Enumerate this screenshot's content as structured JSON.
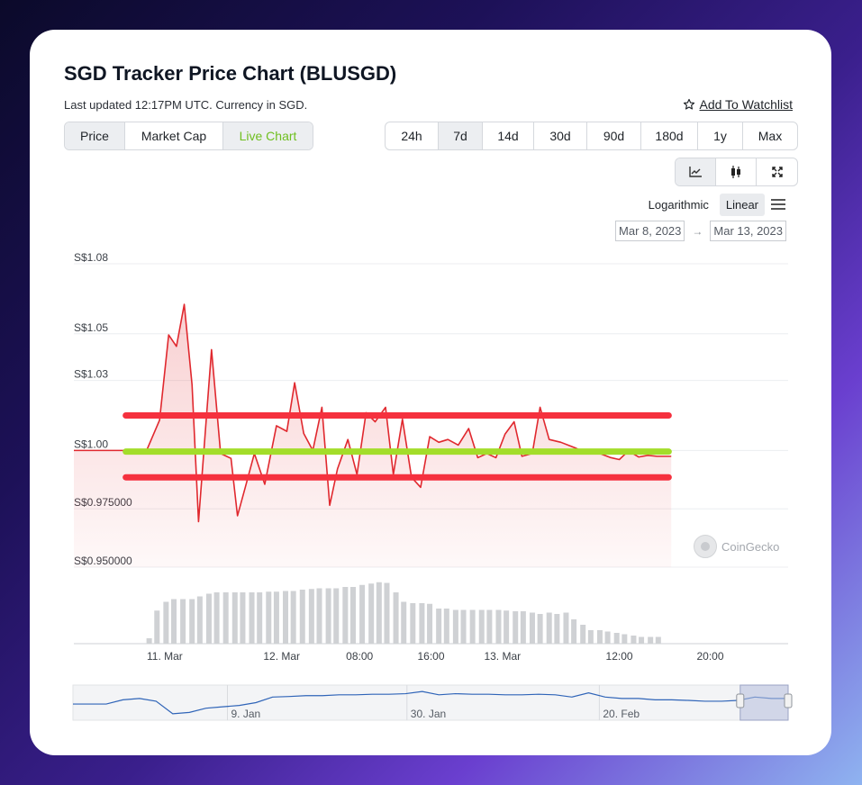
{
  "header": {
    "title": "SGD Tracker Price Chart (BLUSGD)",
    "subtitle": "Last updated 12:17PM UTC. Currency in SGD.",
    "watchlist_label": "Add To Watchlist"
  },
  "view_tabs": [
    {
      "label": "Price",
      "state": "active"
    },
    {
      "label": "Market Cap",
      "state": ""
    },
    {
      "label": "Live Chart",
      "state": "green"
    }
  ],
  "range_tabs": [
    {
      "label": "24h",
      "active": false
    },
    {
      "label": "7d",
      "active": true
    },
    {
      "label": "14d",
      "active": false
    },
    {
      "label": "30d",
      "active": false
    },
    {
      "label": "90d",
      "active": false
    },
    {
      "label": "180d",
      "active": false
    },
    {
      "label": "1y",
      "active": false
    },
    {
      "label": "Max",
      "active": false
    }
  ],
  "chart_type_icons": [
    "line-chart-icon",
    "candlestick-icon",
    "fullscreen-icon"
  ],
  "scale": {
    "options": [
      "Logarithmic",
      "Linear"
    ],
    "selected": "Linear"
  },
  "dates": {
    "from": "Mar 8, 2023",
    "to": "Mar 13, 2023"
  },
  "watermark": "CoinGecko",
  "colors": {
    "price_line": "#e0282e",
    "price_fill": "#fde4e4",
    "band": "#f5313e",
    "mean": "#a3dd2a",
    "volume": "#cfd1d4",
    "navigator": "#2f64b8",
    "navigator_mask": "rgba(180,190,220,0.55)"
  },
  "chart_data": {
    "type": "line",
    "title": "SGD Tracker Price Chart (BLUSGD)",
    "ylim": [
      0.95,
      1.08
    ],
    "y_tick_values": [
      0.95,
      0.975,
      1.0,
      1.03,
      1.05,
      1.08
    ],
    "y_tick_labels": [
      "S$0.950000",
      "S$0.975000",
      "S$1.00",
      "S$1.03",
      "S$1.05",
      "S$1.08"
    ],
    "xlim": [
      0,
      55
    ],
    "x_tick_positions": [
      7,
      16,
      22,
      27.5,
      33,
      42,
      49
    ],
    "x_tick_labels": [
      "11. Mar",
      "12. Mar",
      "08:00",
      "16:00",
      "13. Mar",
      "12:00",
      "20:00"
    ],
    "price": [
      {
        "x": 0.0,
        "y": 1.0
      },
      {
        "x": 5.6,
        "y": 1.0
      },
      {
        "x": 6.6,
        "y": 1.013
      },
      {
        "x": 7.3,
        "y": 1.0495
      },
      {
        "x": 7.9,
        "y": 1.0446
      },
      {
        "x": 8.5,
        "y": 1.0626
      },
      {
        "x": 9.1,
        "y": 1.0282
      },
      {
        "x": 9.6,
        "y": 0.9695
      },
      {
        "x": 10.6,
        "y": 1.0432
      },
      {
        "x": 11.3,
        "y": 0.9987
      },
      {
        "x": 12.1,
        "y": 0.9966
      },
      {
        "x": 12.6,
        "y": 0.972
      },
      {
        "x": 13.2,
        "y": 0.9842
      },
      {
        "x": 13.9,
        "y": 0.9987
      },
      {
        "x": 14.7,
        "y": 0.9855
      },
      {
        "x": 15.6,
        "y": 1.0106
      },
      {
        "x": 16.4,
        "y": 1.0082
      },
      {
        "x": 17.0,
        "y": 1.029
      },
      {
        "x": 17.7,
        "y": 1.0073
      },
      {
        "x": 18.4,
        "y": 1.0
      },
      {
        "x": 19.1,
        "y": 1.0185
      },
      {
        "x": 19.7,
        "y": 0.9765
      },
      {
        "x": 20.3,
        "y": 0.9921
      },
      {
        "x": 21.1,
        "y": 1.0047
      },
      {
        "x": 21.8,
        "y": 0.9897
      },
      {
        "x": 22.5,
        "y": 1.0162
      },
      {
        "x": 23.2,
        "y": 1.0123
      },
      {
        "x": 24.0,
        "y": 1.0185
      },
      {
        "x": 24.6,
        "y": 0.9897
      },
      {
        "x": 25.3,
        "y": 1.0134
      },
      {
        "x": 26.0,
        "y": 0.9885
      },
      {
        "x": 26.7,
        "y": 0.9842
      },
      {
        "x": 27.4,
        "y": 1.0059
      },
      {
        "x": 28.1,
        "y": 1.0035
      },
      {
        "x": 28.8,
        "y": 1.0047
      },
      {
        "x": 29.6,
        "y": 1.0023
      },
      {
        "x": 30.4,
        "y": 1.0094
      },
      {
        "x": 31.1,
        "y": 0.9969
      },
      {
        "x": 31.8,
        "y": 0.9987
      },
      {
        "x": 32.5,
        "y": 0.9969
      },
      {
        "x": 33.2,
        "y": 1.007
      },
      {
        "x": 33.9,
        "y": 1.0123
      },
      {
        "x": 34.5,
        "y": 0.9975
      },
      {
        "x": 35.3,
        "y": 0.9987
      },
      {
        "x": 35.9,
        "y": 1.0185
      },
      {
        "x": 36.6,
        "y": 1.0047
      },
      {
        "x": 37.5,
        "y": 1.0035
      },
      {
        "x": 38.6,
        "y": 1.0011
      },
      {
        "x": 39.5,
        "y": 0.9987
      },
      {
        "x": 40.5,
        "y": 0.9987
      },
      {
        "x": 41.3,
        "y": 0.997
      },
      {
        "x": 42.0,
        "y": 0.9961
      },
      {
        "x": 42.7,
        "y": 0.9998
      },
      {
        "x": 43.5,
        "y": 0.9972
      },
      {
        "x": 44.2,
        "y": 0.9979
      },
      {
        "x": 44.9,
        "y": 0.9975
      },
      {
        "x": 46.0,
        "y": 0.9975
      }
    ],
    "volume": [
      {
        "x": 5.8,
        "v": 0.08
      },
      {
        "x": 6.4,
        "v": 0.49
      },
      {
        "x": 7.1,
        "v": 0.62
      },
      {
        "x": 7.7,
        "v": 0.66
      },
      {
        "x": 8.4,
        "v": 0.66
      },
      {
        "x": 9.1,
        "v": 0.66
      },
      {
        "x": 9.7,
        "v": 0.7
      },
      {
        "x": 10.4,
        "v": 0.74
      },
      {
        "x": 11.0,
        "v": 0.76
      },
      {
        "x": 11.7,
        "v": 0.76
      },
      {
        "x": 12.4,
        "v": 0.76
      },
      {
        "x": 13.0,
        "v": 0.76
      },
      {
        "x": 13.7,
        "v": 0.76
      },
      {
        "x": 14.3,
        "v": 0.76
      },
      {
        "x": 15.0,
        "v": 0.77
      },
      {
        "x": 15.6,
        "v": 0.77
      },
      {
        "x": 16.3,
        "v": 0.78
      },
      {
        "x": 16.9,
        "v": 0.78
      },
      {
        "x": 17.6,
        "v": 0.8
      },
      {
        "x": 18.3,
        "v": 0.81
      },
      {
        "x": 18.9,
        "v": 0.82
      },
      {
        "x": 19.6,
        "v": 0.82
      },
      {
        "x": 20.2,
        "v": 0.82
      },
      {
        "x": 20.9,
        "v": 0.84
      },
      {
        "x": 21.5,
        "v": 0.84
      },
      {
        "x": 22.2,
        "v": 0.87
      },
      {
        "x": 22.9,
        "v": 0.89
      },
      {
        "x": 23.5,
        "v": 0.91
      },
      {
        "x": 24.1,
        "v": 0.9
      },
      {
        "x": 24.8,
        "v": 0.76
      },
      {
        "x": 25.4,
        "v": 0.62
      },
      {
        "x": 26.1,
        "v": 0.6
      },
      {
        "x": 26.8,
        "v": 0.6
      },
      {
        "x": 27.4,
        "v": 0.59
      },
      {
        "x": 28.1,
        "v": 0.52
      },
      {
        "x": 28.7,
        "v": 0.52
      },
      {
        "x": 29.4,
        "v": 0.5
      },
      {
        "x": 30.0,
        "v": 0.5
      },
      {
        "x": 30.7,
        "v": 0.5
      },
      {
        "x": 31.4,
        "v": 0.5
      },
      {
        "x": 32.0,
        "v": 0.5
      },
      {
        "x": 32.7,
        "v": 0.5
      },
      {
        "x": 33.3,
        "v": 0.49
      },
      {
        "x": 34.0,
        "v": 0.48
      },
      {
        "x": 34.6,
        "v": 0.48
      },
      {
        "x": 35.3,
        "v": 0.46
      },
      {
        "x": 35.9,
        "v": 0.44
      },
      {
        "x": 36.6,
        "v": 0.46
      },
      {
        "x": 37.2,
        "v": 0.44
      },
      {
        "x": 37.9,
        "v": 0.46
      },
      {
        "x": 38.5,
        "v": 0.36
      },
      {
        "x": 39.2,
        "v": 0.28
      },
      {
        "x": 39.8,
        "v": 0.2
      },
      {
        "x": 40.5,
        "v": 0.2
      },
      {
        "x": 41.1,
        "v": 0.18
      },
      {
        "x": 41.8,
        "v": 0.16
      },
      {
        "x": 42.4,
        "v": 0.14
      },
      {
        "x": 43.1,
        "v": 0.12
      },
      {
        "x": 43.7,
        "v": 0.1
      },
      {
        "x": 44.4,
        "v": 0.1
      },
      {
        "x": 45.0,
        "v": 0.1
      }
    ],
    "bands": [
      {
        "name": "upper",
        "y": 1.015
      },
      {
        "name": "mean",
        "y": 0.9995
      },
      {
        "name": "lower",
        "y": 0.9885
      }
    ],
    "band_x_range": [
      4.0,
      45.8
    ],
    "navigator": {
      "x_tick_positions": [
        0.216,
        0.467,
        0.736
      ],
      "x_tick_labels": [
        "9. Jan",
        "30. Jan",
        "20. Feb"
      ],
      "selected_range": [
        0.933,
        1.0
      ]
    }
  }
}
